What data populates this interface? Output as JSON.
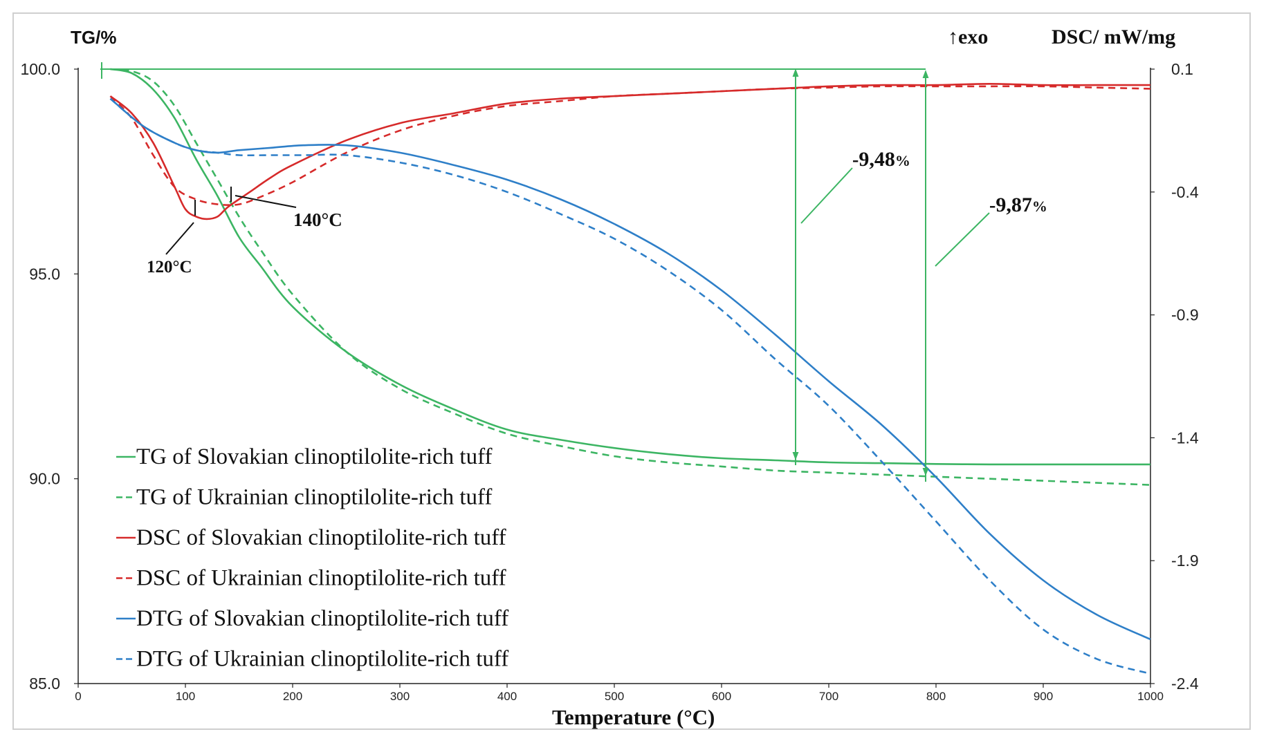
{
  "chart_data": {
    "type": "line",
    "xlabel": "Temperature (°C)",
    "xlim": [
      0,
      1000
    ],
    "xticks": [
      "0",
      "100",
      "200",
      "300",
      "400",
      "500",
      "600",
      "700",
      "800",
      "900",
      "1000"
    ],
    "y_left": {
      "label": "TG/%",
      "lim": [
        85,
        100
      ],
      "ticks": [
        "100.0",
        "95.0",
        "90.0",
        "85.0"
      ]
    },
    "y_right": {
      "label": "DSC/ mW/mg",
      "lim": [
        -2.4,
        0.1
      ],
      "ticks": [
        "0.1",
        "-0.4",
        "-0.9",
        "-1.4",
        "-1.9",
        "-2.4"
      ]
    },
    "exo_label": "↑exo",
    "annotations": {
      "peak1": "120°C",
      "peak2": "140°C",
      "loss1_value": "9,48",
      "loss1_unit": "%",
      "loss2_value": "9,87",
      "loss2_unit": "%"
    },
    "series": [
      {
        "name": "TG of Slovakian clinoptilolite-rich tuff",
        "axis": "left",
        "color": "#3cb563",
        "dash": false,
        "x": [
          30,
          50,
          70,
          90,
          110,
          130,
          150,
          170,
          200,
          250,
          300,
          350,
          400,
          450,
          500,
          550,
          600,
          650,
          700,
          750,
          800,
          850,
          900,
          950,
          1000
        ],
        "y": [
          100,
          99.9,
          99.5,
          98.8,
          97.8,
          96.9,
          95.9,
          95.2,
          94.2,
          93.1,
          92.3,
          91.7,
          91.2,
          90.95,
          90.75,
          90.6,
          90.5,
          90.45,
          90.4,
          90.38,
          90.36,
          90.35,
          90.35,
          90.35,
          90.35
        ]
      },
      {
        "name": "TG of Ukrainian clinoptilolite-rich tuff",
        "axis": "left",
        "color": "#3cb563",
        "dash": true,
        "x": [
          30,
          50,
          70,
          90,
          110,
          130,
          150,
          170,
          200,
          250,
          300,
          350,
          400,
          450,
          500,
          550,
          600,
          650,
          700,
          750,
          800,
          850,
          900,
          950,
          1000
        ],
        "y": [
          100,
          99.95,
          99.7,
          99.1,
          98.2,
          97.3,
          96.4,
          95.6,
          94.5,
          93.1,
          92.2,
          91.6,
          91.1,
          90.8,
          90.55,
          90.4,
          90.3,
          90.2,
          90.15,
          90.1,
          90.05,
          90.0,
          89.95,
          89.9,
          89.85
        ]
      },
      {
        "name": "DSC of Slovakian clinoptilolite-rich tuff",
        "axis": "right",
        "color": "#d62a2a",
        "dash": false,
        "x": [
          30,
          50,
          70,
          90,
          100,
          110,
          120,
          130,
          140,
          160,
          180,
          200,
          250,
          300,
          350,
          400,
          450,
          500,
          550,
          600,
          650,
          700,
          750,
          800,
          850,
          900,
          950,
          1000
        ],
        "y": [
          -0.01,
          -0.08,
          -0.2,
          -0.38,
          -0.47,
          -0.5,
          -0.51,
          -0.5,
          -0.46,
          -0.4,
          -0.34,
          -0.29,
          -0.19,
          -0.12,
          -0.08,
          -0.04,
          -0.02,
          -0.01,
          0.0,
          0.01,
          0.02,
          0.03,
          0.035,
          0.035,
          0.04,
          0.035,
          0.035,
          0.035
        ]
      },
      {
        "name": "DSC of Ukrainian clinoptilolite-rich tuff",
        "axis": "right",
        "color": "#d62a2a",
        "dash": true,
        "x": [
          30,
          50,
          70,
          90,
          110,
          130,
          150,
          170,
          200,
          250,
          300,
          350,
          400,
          450,
          500,
          550,
          600,
          650,
          700,
          750,
          800,
          850,
          900,
          950,
          1000
        ],
        "y": [
          -0.01,
          -0.1,
          -0.25,
          -0.38,
          -0.43,
          -0.45,
          -0.45,
          -0.42,
          -0.36,
          -0.24,
          -0.15,
          -0.09,
          -0.05,
          -0.03,
          -0.01,
          0.0,
          0.01,
          0.02,
          0.025,
          0.03,
          0.03,
          0.03,
          0.03,
          0.025,
          0.02
        ]
      },
      {
        "name": "DTG of Slovakian clinoptilolite-rich tuff",
        "axis": "right",
        "color": "#2e7fc8",
        "dash": false,
        "x": [
          30,
          60,
          90,
          110,
          130,
          150,
          180,
          210,
          250,
          300,
          350,
          400,
          450,
          500,
          550,
          600,
          650,
          700,
          750,
          800,
          850,
          900,
          950,
          1000
        ],
        "y": [
          -0.02,
          -0.13,
          -0.2,
          -0.23,
          -0.24,
          -0.23,
          -0.22,
          -0.21,
          -0.21,
          -0.24,
          -0.29,
          -0.35,
          -0.43,
          -0.53,
          -0.65,
          -0.8,
          -0.98,
          -1.17,
          -1.35,
          -1.56,
          -1.79,
          -1.98,
          -2.12,
          -2.22
        ]
      },
      {
        "name": "DTG of Ukrainian clinoptilolite-rich tuff",
        "axis": "right",
        "color": "#2e7fc8",
        "dash": true,
        "x": [
          30,
          60,
          90,
          110,
          130,
          150,
          180,
          210,
          250,
          300,
          350,
          400,
          450,
          500,
          550,
          600,
          650,
          700,
          750,
          800,
          850,
          900,
          950,
          1000
        ],
        "y": [
          -0.02,
          -0.13,
          -0.2,
          -0.23,
          -0.24,
          -0.25,
          -0.25,
          -0.25,
          -0.25,
          -0.28,
          -0.33,
          -0.4,
          -0.49,
          -0.59,
          -0.72,
          -0.88,
          -1.08,
          -1.27,
          -1.5,
          -1.74,
          -1.98,
          -2.18,
          -2.3,
          -2.36
        ]
      }
    ],
    "legend_position": "bottom-left",
    "grid": false
  }
}
